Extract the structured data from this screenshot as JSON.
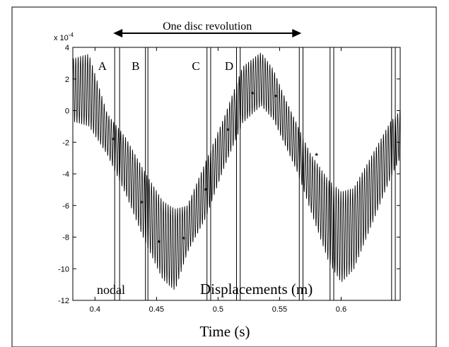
{
  "chart_data": {
    "type": "line",
    "title": "",
    "xlabel": "Time (s)",
    "ylabel": "",
    "y_scale_label": "x 10",
    "y_scale_exponent": "-4",
    "xlim": [
      0.382,
      0.648
    ],
    "ylim": [
      -12,
      4
    ],
    "xticks": [
      0.4,
      0.45,
      0.5,
      0.55,
      0.6
    ],
    "xtick_labels": [
      "0.4",
      "0.45",
      "0.5",
      "0.55",
      "0.6"
    ],
    "yticks": [
      -12,
      -10,
      -8,
      -6,
      -4,
      -2,
      0,
      2,
      4
    ],
    "ytick_labels": [
      "-12",
      "-10",
      "-8",
      "-6",
      "-4",
      "-2",
      "0",
      "2",
      "4"
    ],
    "grid": false,
    "series": [
      {
        "name": "",
        "color": "#000000",
        "oscillation_frequency_hz": 520,
        "envelope_center": {
          "x": [
            0.382,
            0.395,
            0.41,
            0.425,
            0.44,
            0.455,
            0.465,
            0.475,
            0.49,
            0.505,
            0.52,
            0.535,
            0.545,
            0.555,
            0.565,
            0.575,
            0.59,
            0.6,
            0.61,
            0.625,
            0.64,
            0.648
          ],
          "y": [
            1.3,
            1.3,
            -1.5,
            -3.5,
            -6.0,
            -8.2,
            -8.8,
            -7.5,
            -5.0,
            -2.0,
            1.0,
            2.0,
            1.0,
            -0.8,
            -2.5,
            -4.5,
            -7.0,
            -8.0,
            -7.5,
            -5.0,
            -2.5,
            -1.5
          ]
        },
        "envelope_amplitude": {
          "x": [
            0.382,
            0.395,
            0.41,
            0.425,
            0.44,
            0.455,
            0.465,
            0.475,
            0.49,
            0.505,
            0.52,
            0.535,
            0.545,
            0.555,
            0.565,
            0.575,
            0.59,
            0.6,
            0.61,
            0.625,
            0.64,
            0.648
          ],
          "y": [
            2.0,
            2.3,
            1.3,
            1.8,
            2.2,
            2.5,
            2.6,
            1.5,
            1.8,
            1.6,
            1.8,
            1.7,
            1.6,
            1.5,
            1.5,
            1.8,
            2.6,
            2.9,
            2.6,
            2.2,
            1.8,
            1.5
          ]
        }
      }
    ],
    "markers": {
      "symbol": "*",
      "x": [
        0.415,
        0.438,
        0.452,
        0.472,
        0.49,
        0.508,
        0.528,
        0.547,
        0.58
      ],
      "y": [
        -1.8,
        -5.8,
        -8.3,
        -8.1,
        -5.0,
        -1.2,
        1.1,
        0.9,
        -2.8
      ]
    },
    "vertical_lines": [
      0.416,
      0.42,
      0.441,
      0.443,
      0.491,
      0.494,
      0.515,
      0.518,
      0.566,
      0.569,
      0.591,
      0.594,
      0.641,
      0.644
    ],
    "section_labels": [
      {
        "text": "A",
        "x": 0.406
      },
      {
        "text": "B",
        "x": 0.433
      },
      {
        "text": "C",
        "x": 0.482
      },
      {
        "text": "D",
        "x": 0.509
      }
    ],
    "revolution_arrow": {
      "label": "One disc revolution",
      "x_start": 0.416,
      "x_end": 0.566
    },
    "annotations": {
      "bottom_left": "nodal",
      "bottom_right": "Displacements (m)"
    }
  }
}
